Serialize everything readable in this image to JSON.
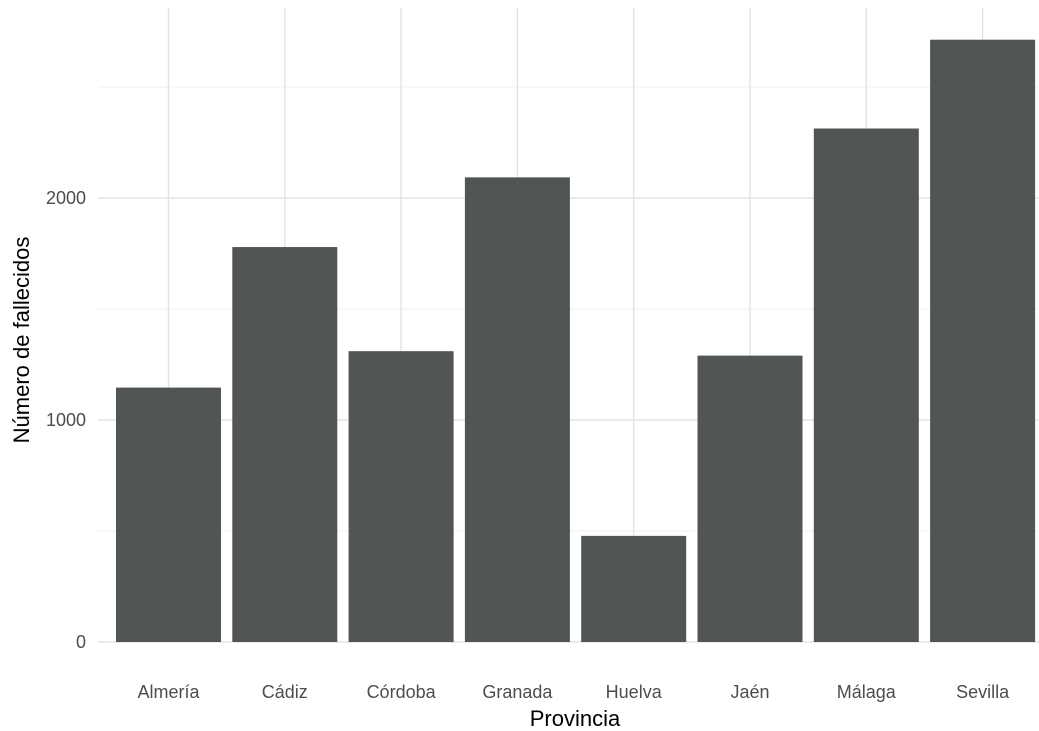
{
  "chart_data": {
    "type": "bar",
    "xlabel": "Provincia",
    "ylabel": "Número de fallecidos",
    "categories": [
      "Almería",
      "Cádiz",
      "Córdoba",
      "Granada",
      "Huelva",
      "Jaén",
      "Málaga",
      "Sevilla"
    ],
    "values": [
      1146,
      1779,
      1310,
      2093,
      478,
      1290,
      2313,
      2713
    ],
    "ylim": [
      0,
      2850
    ],
    "y_ticks": [
      0,
      1000,
      2000
    ],
    "y_tick_labels": [
      "0",
      "1000",
      "2000"
    ],
    "y_minor_ticks": [
      500,
      1500,
      2500
    ],
    "grid": true,
    "bar_color": "#515555",
    "grid_color": "#e3e3e3"
  }
}
